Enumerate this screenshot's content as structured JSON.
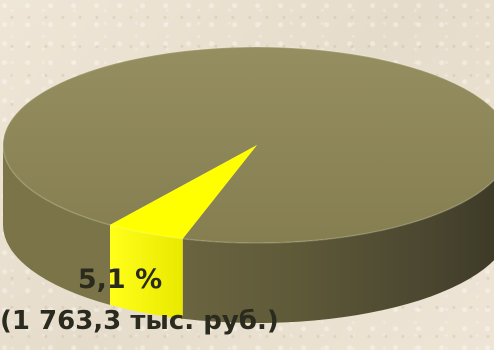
{
  "chart_data": {
    "type": "pie",
    "title": "",
    "slices": [
      {
        "label": "",
        "percent": 94.9,
        "color": "#8b8455"
      },
      {
        "label": "(1 763,3 тыс. руб.)",
        "percent": 5.1,
        "percent_label": "5,1 %",
        "color": "#ffff00"
      }
    ],
    "style": "3d"
  },
  "labels": {
    "percent": "5,1 %",
    "amount": "(1 763,3 тыс. руб.)"
  }
}
